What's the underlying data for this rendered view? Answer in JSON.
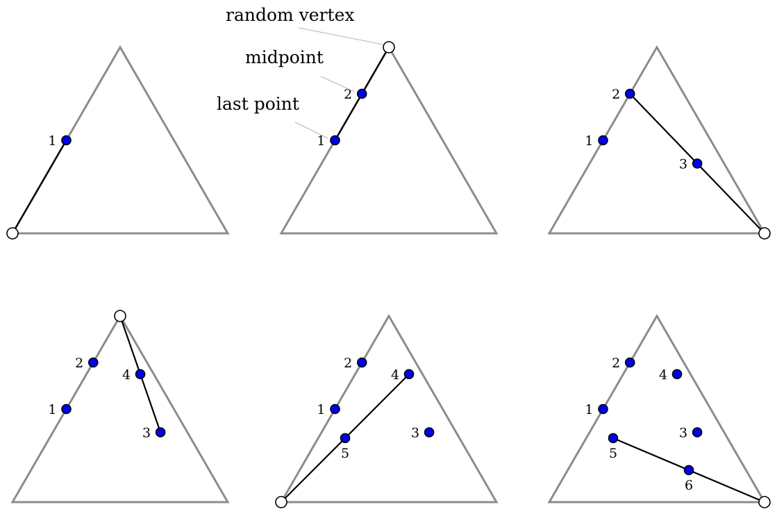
{
  "diagram": {
    "callouts": {
      "random_vertex": "random vertex",
      "midpoint": "midpoint",
      "last_point": "last point"
    },
    "colors": {
      "triangle": "#8c8c8c",
      "path": "#000000",
      "point_fill": "#0000ee",
      "vertex_fill": "#ffffff",
      "leader": "#b4b4b4"
    },
    "panels": [
      {
        "id": "step-1",
        "vertex": "bottom-left",
        "points": [
          {
            "id": 1,
            "label": "1",
            "label_side": "left"
          }
        ],
        "segment": {
          "from": "vertex",
          "to": 1
        }
      },
      {
        "id": "step-2",
        "vertex": "top",
        "points": [
          {
            "id": 1,
            "label": "1",
            "label_side": "left"
          },
          {
            "id": 2,
            "label": "2",
            "label_side": "left"
          }
        ],
        "segment": {
          "from": 1,
          "to": "vertex"
        }
      },
      {
        "id": "step-3",
        "vertex": "bottom-right",
        "points": [
          {
            "id": 1,
            "label": "1",
            "label_side": "left"
          },
          {
            "id": 2,
            "label": "2",
            "label_side": "left"
          },
          {
            "id": 3,
            "label": "3",
            "label_side": "left"
          }
        ],
        "segment": {
          "from": 2,
          "to": "vertex"
        }
      },
      {
        "id": "step-4",
        "vertex": "top",
        "points": [
          {
            "id": 1,
            "label": "1",
            "label_side": "left"
          },
          {
            "id": 2,
            "label": "2",
            "label_side": "left"
          },
          {
            "id": 3,
            "label": "3",
            "label_side": "left"
          },
          {
            "id": 4,
            "label": "4",
            "label_side": "left"
          }
        ],
        "segment": {
          "from": 3,
          "to": "vertex"
        }
      },
      {
        "id": "step-5",
        "vertex": "bottom-left",
        "points": [
          {
            "id": 1,
            "label": "1",
            "label_side": "left"
          },
          {
            "id": 2,
            "label": "2",
            "label_side": "left"
          },
          {
            "id": 3,
            "label": "3",
            "label_side": "left"
          },
          {
            "id": 4,
            "label": "4",
            "label_side": "left"
          },
          {
            "id": 5,
            "label": "5",
            "label_side": "below"
          }
        ],
        "segment": {
          "from": 4,
          "to": "vertex"
        }
      },
      {
        "id": "step-6",
        "vertex": "bottom-right",
        "points": [
          {
            "id": 1,
            "label": "1",
            "label_side": "left"
          },
          {
            "id": 2,
            "label": "2",
            "label_side": "left"
          },
          {
            "id": 3,
            "label": "3",
            "label_side": "left"
          },
          {
            "id": 4,
            "label": "4",
            "label_side": "left"
          },
          {
            "id": 5,
            "label": "5",
            "label_side": "below"
          },
          {
            "id": 6,
            "label": "6",
            "label_side": "below"
          }
        ],
        "segment": {
          "from": 5,
          "to": "vertex"
        }
      }
    ]
  }
}
